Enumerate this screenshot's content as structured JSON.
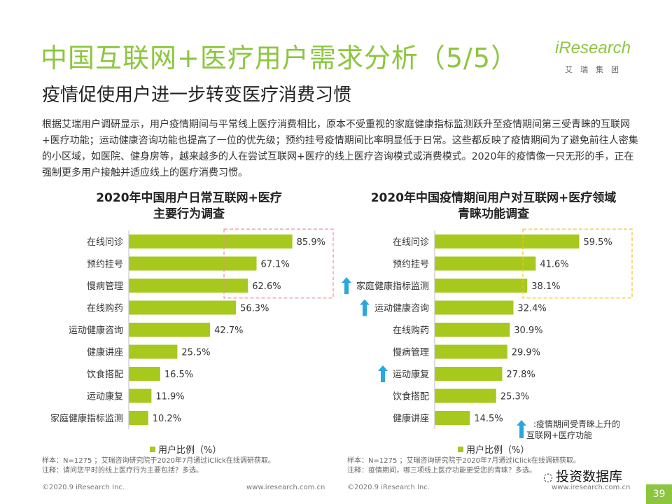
{
  "header": {
    "title": "中国互联网+医疗用户需求分析（5/5）",
    "subtitle": "疫情促使用户进一步转变医疗消费习惯",
    "logo_text": "iResearch",
    "logo_sub": "艾瑞集团"
  },
  "intro": "根据艾瑞用户调研显示，用户疫情期间与平常线上医疗消费相比，原本不受重视的家庭健康指标监测跃升至疫情期间第三受青睐的互联网+医疗功能；运动健康咨询功能也提高了一位的优先级；预约挂号疫情期间比率明显低于日常。这些都反映了疫情期间为了避免前往人密集的小区域，如医院、健身房等，越来越多的人在尝试互联网+医疗的线上医疗咨询模式或消费模式。2020年的疫情像一只无形的手，正在强制更多用户接触并适应线上的医疗消费习惯。",
  "colors": {
    "brand_green": "#8cc63f",
    "bar": "#a7c81d",
    "up_arrow": "#29a8e0",
    "left_box": "#ee8f99",
    "right_box": "#f5c518"
  },
  "chart_data": [
    {
      "type": "bar",
      "orientation": "horizontal",
      "title_lines": [
        "2020年中国用户日常互联网+医疗",
        "主要行为调查"
      ],
      "categories": [
        "在线问诊",
        "预约挂号",
        "慢病管理",
        "在线购药",
        "运动健康咨询",
        "健康讲座",
        "饮食搭配",
        "运动康复",
        "家庭健康指标监测"
      ],
      "values": [
        85.9,
        67.1,
        62.6,
        56.3,
        42.7,
        25.5,
        16.5,
        11.9,
        10.2
      ],
      "value_labels": [
        "85.9%",
        "67.1%",
        "62.6%",
        "56.3%",
        "42.7%",
        "25.5%",
        "16.5%",
        "11.9%",
        "10.2%"
      ],
      "highlight_top": 3,
      "highlight_color": "#ee8f99",
      "series": [
        {
          "name": "用户比例（%）",
          "values": [
            85.9,
            67.1,
            62.6,
            56.3,
            42.7,
            25.5,
            16.5,
            11.9,
            10.2
          ]
        }
      ],
      "legend": "用户比例（%）",
      "xlim": [
        0,
        100
      ],
      "grid": false,
      "legend_position": "bottom"
    },
    {
      "type": "bar",
      "orientation": "horizontal",
      "title_lines": [
        "2020年中国疫情期间用户对互联网+医疗领域",
        "青睐功能调查"
      ],
      "categories": [
        "在线问诊",
        "预约挂号",
        "家庭健康指标监测",
        "运动健康咨询",
        "在线购药",
        "慢病管理",
        "运动康复",
        "饮食搭配",
        "健康讲座"
      ],
      "values": [
        59.5,
        41.6,
        38.1,
        32.4,
        30.9,
        29.9,
        27.8,
        25.3,
        14.5
      ],
      "value_labels": [
        "59.5%",
        "41.6%",
        "38.1%",
        "32.4%",
        "30.9%",
        "29.9%",
        "27.8%",
        "25.3%",
        "14.5%"
      ],
      "up_arrows": [
        false,
        false,
        true,
        true,
        false,
        false,
        true,
        false,
        false
      ],
      "highlight_top": 3,
      "highlight_color": "#f5c518",
      "series": [
        {
          "name": "用户比例（%）",
          "values": [
            59.5,
            41.6,
            38.1,
            32.4,
            30.9,
            29.9,
            27.8,
            25.3,
            14.5
          ]
        }
      ],
      "legend": "用户比例（%）",
      "xlim": [
        0,
        100
      ],
      "grid": false,
      "legend_position": "bottom"
    }
  ],
  "up_legend": [
    ":疫情期间受青睐上升的",
    "互联网+医疗功能"
  ],
  "notes_left": [
    "样本：N=1275 ；艾瑞咨询研究院于2020年7月通过iClick在线调研获取。",
    "注释：请问您平时的线上医疗行为主要包括？多选。"
  ],
  "notes_right": [
    "样本：N=1275 ；艾瑞咨询研究院于2020年7月通过iClick在线调研获取。",
    "注释：疫情期间，哪三项线上医疗功能更受您的青睐？多选。"
  ],
  "footer": {
    "copyright": "©2020.9 iResearch Inc.",
    "site": "www.iresearch.com.cn",
    "watermark": "投资数据库",
    "page": "39"
  }
}
